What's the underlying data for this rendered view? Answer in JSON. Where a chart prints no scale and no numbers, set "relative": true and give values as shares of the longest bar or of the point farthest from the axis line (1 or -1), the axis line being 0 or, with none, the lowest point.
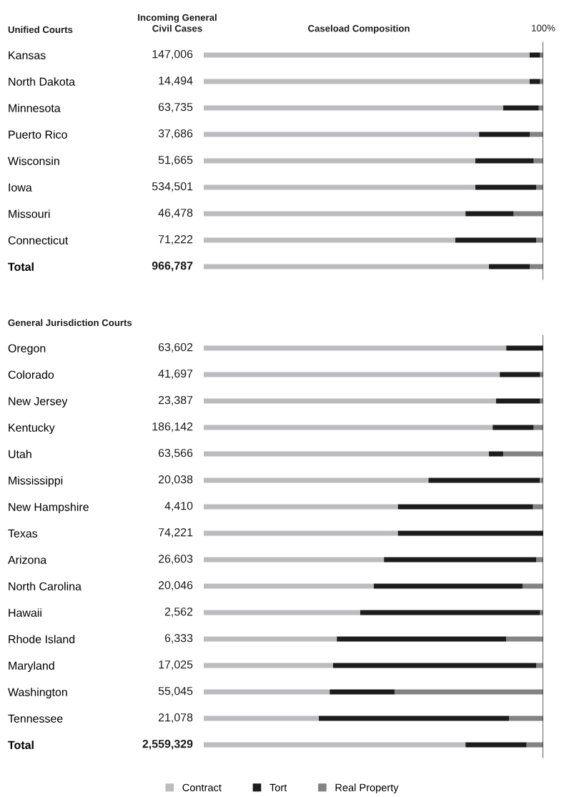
{
  "chart_data": [
    {
      "type": "bar",
      "orientation": "horizontal",
      "stacked": true,
      "relative": true,
      "title": "Unified Courts",
      "categories": [
        "Kansas",
        "North Dakota",
        "Minnesota",
        "Puerto Rico",
        "Wisconsin",
        "Iowa",
        "Missouri",
        "Connecticut",
        "Total"
      ],
      "series": [
        {
          "color": "#bbbcc0",
          "values": [
            0.96,
            0.96,
            0.882,
            0.811,
            0.8,
            0.8,
            0.771,
            0.741,
            0.84
          ]
        },
        {
          "color": "#1c1c1c",
          "values": [
            0.031,
            0.031,
            0.105,
            0.149,
            0.172,
            0.179,
            0.142,
            0.238,
            0.12
          ]
        },
        {
          "color": "#838383",
          "values": [
            0.009,
            0.009,
            0.013,
            0.04,
            0.028,
            0.021,
            0.087,
            0.021,
            0.04
          ]
        }
      ],
      "ref_lines": [
        {
          "axis": "x",
          "value": 1,
          "label": "100%",
          "color": "#1c1c1c"
        }
      ],
      "annotations": [
        "Incoming General\nCivil Cases",
        "Caseload Composition",
        "147,006",
        "14,494",
        "63,735",
        "37,686",
        "51,665",
        "534,501",
        "46,478",
        "71,222",
        "966,787"
      ]
    },
    {
      "type": "bar",
      "orientation": "horizontal",
      "stacked": true,
      "relative": true,
      "title": "General Jurisdiction Courts",
      "legend": "bottom",
      "categories": [
        "Oregon",
        "Colorado",
        "New Jersey",
        "Kentucky",
        "Utah",
        "Mississippi",
        "New Hampshire",
        "Texas",
        "Arizona",
        "North Carolina",
        "Hawaii",
        "Rhode Island",
        "Maryland",
        "Washington",
        "Tennessee",
        "Total"
      ],
      "series": [
        {
          "name": "Contract",
          "color": "#bbbcc0",
          "values": [
            0.891,
            0.872,
            0.861,
            0.851,
            0.84,
            0.662,
            0.572,
            0.572,
            0.531,
            0.501,
            0.461,
            0.392,
            0.381,
            0.371,
            0.339,
            0.771
          ]
        },
        {
          "name": "Tort",
          "color": "#1c1c1c",
          "values": [
            0.109,
            0.119,
            0.13,
            0.121,
            0.042,
            0.328,
            0.398,
            0.428,
            0.448,
            0.439,
            0.53,
            0.499,
            0.598,
            0.191,
            0.56,
            0.18
          ]
        },
        {
          "name": "Real Property",
          "color": "#838383",
          "values": [
            0,
            0.009,
            0.009,
            0.028,
            0.118,
            0.01,
            0.03,
            0,
            0.021,
            0.06,
            0.009,
            0.109,
            0.021,
            0.438,
            0.101,
            0.049
          ]
        }
      ],
      "ref_lines": [
        {
          "axis": "x",
          "value": 1,
          "label": null,
          "color": "#1c1c1c"
        }
      ],
      "annotations": [
        "63,602",
        "41,697",
        "23,387",
        "186,142",
        "63,566",
        "20,038",
        "4,410",
        "74,221",
        "26,603",
        "20,046",
        "2,562",
        "6,333",
        "17,025",
        "55,045",
        "21,078",
        "2,559,329"
      ]
    }
  ]
}
